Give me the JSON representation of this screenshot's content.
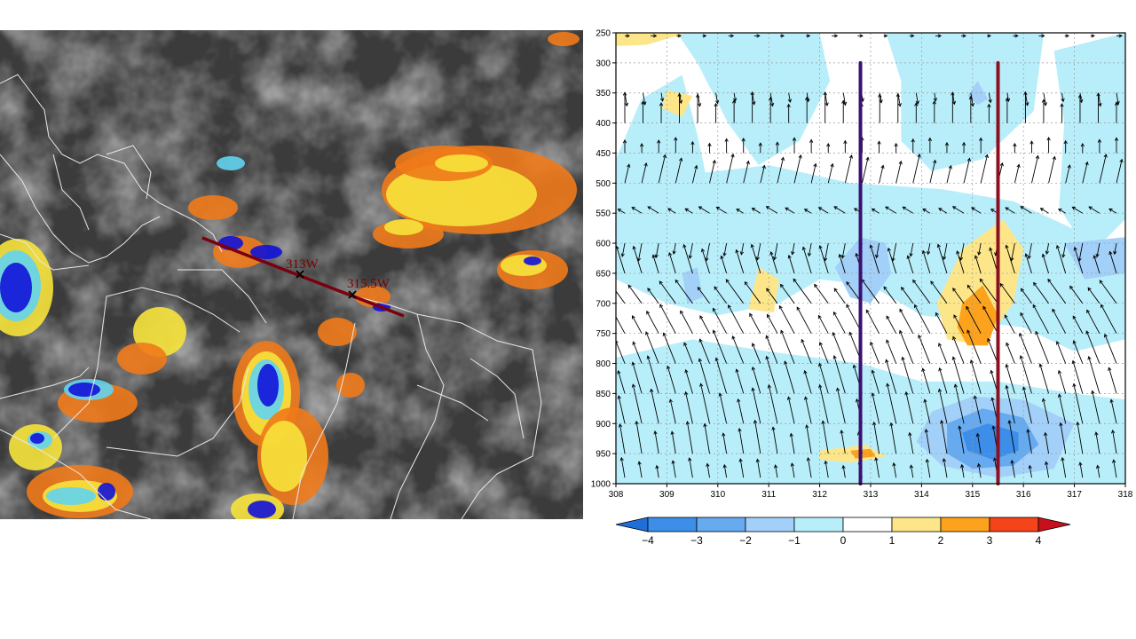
{
  "satellite": {
    "markers": [
      {
        "label": "313W"
      },
      {
        "label": "315.5W"
      }
    ]
  },
  "chart_data": {
    "type": "heatmap",
    "title": "",
    "xlabel": "",
    "ylabel": "",
    "x_ticks": [
      "308",
      "309",
      "310",
      "311",
      "312",
      "313",
      "314",
      "315",
      "316",
      "317",
      "318"
    ],
    "y_ticks": [
      "250",
      "300",
      "350",
      "400",
      "450",
      "500",
      "550",
      "600",
      "650",
      "700",
      "750",
      "800",
      "850",
      "900",
      "950",
      "1000"
    ],
    "xlim": [
      308,
      318
    ],
    "ylim": [
      1000,
      250
    ],
    "y_scale": "linear-inverted",
    "grid": true,
    "vertical_lines": [
      {
        "x": 312.8,
        "from": 1000,
        "to": 300,
        "color": "#3b1070"
      },
      {
        "x": 315.5,
        "from": 1000,
        "to": 300,
        "color": "#8b1020"
      }
    ],
    "colorbar": {
      "ticks": [
        "−4",
        "−3",
        "−2",
        "−1",
        "0",
        "1",
        "2",
        "3",
        "4"
      ],
      "colors": [
        "#1f6fd8",
        "#3c8ee8",
        "#66aaf0",
        "#a3d0f8",
        "#b8eefa",
        "#ffffff",
        "#fde68a",
        "#fca21c",
        "#f5431a",
        "#c8101c"
      ]
    },
    "contour_regions": [
      {
        "level": 0,
        "color": "#b8eefa",
        "points": [
          [
            308,
            460
          ],
          [
            308.5,
            360
          ],
          [
            309.3,
            320
          ],
          [
            309.6,
            420
          ],
          [
            309.8,
            500
          ],
          [
            308.6,
            520
          ],
          [
            308,
            520
          ]
        ]
      },
      {
        "level": 0,
        "color": "#b8eefa",
        "points": [
          [
            309.2,
            250
          ],
          [
            312,
            250
          ],
          [
            312.2,
            330
          ],
          [
            311.6,
            430
          ],
          [
            310.8,
            470
          ],
          [
            310.2,
            400
          ],
          [
            309.6,
            300
          ]
        ]
      },
      {
        "level": 0,
        "color": "#b8eefa",
        "points": [
          [
            313.3,
            250
          ],
          [
            316.4,
            250
          ],
          [
            316.2,
            380
          ],
          [
            315.2,
            460
          ],
          [
            314.2,
            480
          ],
          [
            313.6,
            430
          ],
          [
            313.6,
            330
          ]
        ]
      },
      {
        "level": 0,
        "color": "#b8eefa",
        "points": [
          [
            316.6,
            280
          ],
          [
            318,
            250
          ],
          [
            318,
            560
          ],
          [
            317.3,
            620
          ],
          [
            316.7,
            540
          ],
          [
            316.8,
            400
          ]
        ]
      },
      {
        "level": 0,
        "color": "#b8eefa",
        "points": [
          [
            308,
            500
          ],
          [
            311,
            470
          ],
          [
            312.6,
            500
          ],
          [
            314.4,
            510
          ],
          [
            315.8,
            530
          ],
          [
            317.6,
            600
          ],
          [
            318,
            640
          ],
          [
            318,
            760
          ],
          [
            317,
            780
          ],
          [
            316,
            740
          ],
          [
            314,
            720
          ],
          [
            313,
            670
          ],
          [
            312,
            660
          ],
          [
            311.2,
            700
          ],
          [
            310,
            720
          ],
          [
            309,
            700
          ],
          [
            308,
            660
          ]
        ]
      },
      {
        "level": 0,
        "color": "#b8eefa",
        "points": [
          [
            308,
            790
          ],
          [
            309.5,
            760
          ],
          [
            311,
            780
          ],
          [
            312.8,
            800
          ],
          [
            314,
            830
          ],
          [
            315.5,
            830
          ],
          [
            317,
            850
          ],
          [
            318,
            860
          ],
          [
            318,
            1000
          ],
          [
            308,
            1000
          ]
        ]
      },
      {
        "level": 1,
        "color": "#fde68a",
        "points": [
          [
            308,
            250
          ],
          [
            309.4,
            250
          ],
          [
            308.6,
            270
          ],
          [
            308,
            272
          ]
        ]
      },
      {
        "level": 1,
        "color": "#fde68a",
        "points": [
          [
            309,
            345
          ],
          [
            309.5,
            355
          ],
          [
            309.3,
            390
          ],
          [
            308.9,
            375
          ]
        ]
      },
      {
        "level": 1,
        "color": "#fde68a",
        "points": [
          [
            310.8,
            640
          ],
          [
            311.2,
            660
          ],
          [
            311.1,
            715
          ],
          [
            310.6,
            710
          ]
        ]
      },
      {
        "level": 1,
        "color": "#fde68a",
        "points": [
          [
            314.8,
            610
          ],
          [
            315.6,
            560
          ],
          [
            316,
            610
          ],
          [
            315.8,
            700
          ],
          [
            315.2,
            770
          ],
          [
            314.5,
            760
          ],
          [
            314.3,
            700
          ]
        ]
      },
      {
        "level": 1,
        "color": "#fde68a",
        "points": [
          [
            312,
            945
          ],
          [
            312.9,
            935
          ],
          [
            313.3,
            955
          ],
          [
            312.6,
            965
          ],
          [
            312,
            960
          ]
        ]
      },
      {
        "level": 2,
        "color": "#fca21c",
        "points": [
          [
            314.8,
            700
          ],
          [
            315.2,
            670
          ],
          [
            315.5,
            720
          ],
          [
            315.3,
            770
          ],
          [
            314.9,
            770
          ],
          [
            314.7,
            740
          ]
        ]
      },
      {
        "level": 2,
        "color": "#fca21c",
        "points": [
          [
            312.6,
            945
          ],
          [
            313,
            942
          ],
          [
            313.1,
            955
          ],
          [
            312.7,
            958
          ]
        ]
      },
      {
        "level": -1,
        "color": "#a3d0f8",
        "points": [
          [
            312.3,
            640
          ],
          [
            312.8,
            590
          ],
          [
            313.3,
            600
          ],
          [
            313.4,
            650
          ],
          [
            313,
            700
          ],
          [
            312.6,
            690
          ]
        ]
      },
      {
        "level": -1,
        "color": "#a3d0f8",
        "points": [
          [
            309.3,
            650
          ],
          [
            309.6,
            640
          ],
          [
            309.7,
            690
          ],
          [
            309.4,
            700
          ]
        ]
      },
      {
        "level": -1,
        "color": "#a3d0f8",
        "points": [
          [
            315.1,
            330
          ],
          [
            315.3,
            360
          ],
          [
            315.1,
            370
          ],
          [
            314.9,
            355
          ]
        ]
      },
      {
        "level": -1,
        "color": "#a3d0f8",
        "points": [
          [
            316.8,
            600
          ],
          [
            318,
            590
          ],
          [
            318,
            650
          ],
          [
            317.2,
            660
          ]
        ]
      },
      {
        "level": -1,
        "color": "#a3d0f8",
        "points": [
          [
            314.2,
            880
          ],
          [
            315,
            855
          ],
          [
            316,
            860
          ],
          [
            317,
            900
          ],
          [
            316.6,
            975
          ],
          [
            315.5,
            990
          ],
          [
            314.4,
            970
          ],
          [
            313.9,
            930
          ]
        ]
      },
      {
        "level": -2,
        "color": "#66aaf0",
        "points": [
          [
            314.5,
            900
          ],
          [
            315.2,
            875
          ],
          [
            316,
            890
          ],
          [
            316.3,
            935
          ],
          [
            315.8,
            970
          ],
          [
            315,
            975
          ],
          [
            314.5,
            950
          ]
        ]
      },
      {
        "level": -3,
        "color": "#3c8ee8",
        "points": [
          [
            314.8,
            915
          ],
          [
            315.3,
            900
          ],
          [
            315.9,
            915
          ],
          [
            315.9,
            945
          ],
          [
            315.4,
            960
          ],
          [
            314.9,
            945
          ]
        ]
      }
    ]
  }
}
